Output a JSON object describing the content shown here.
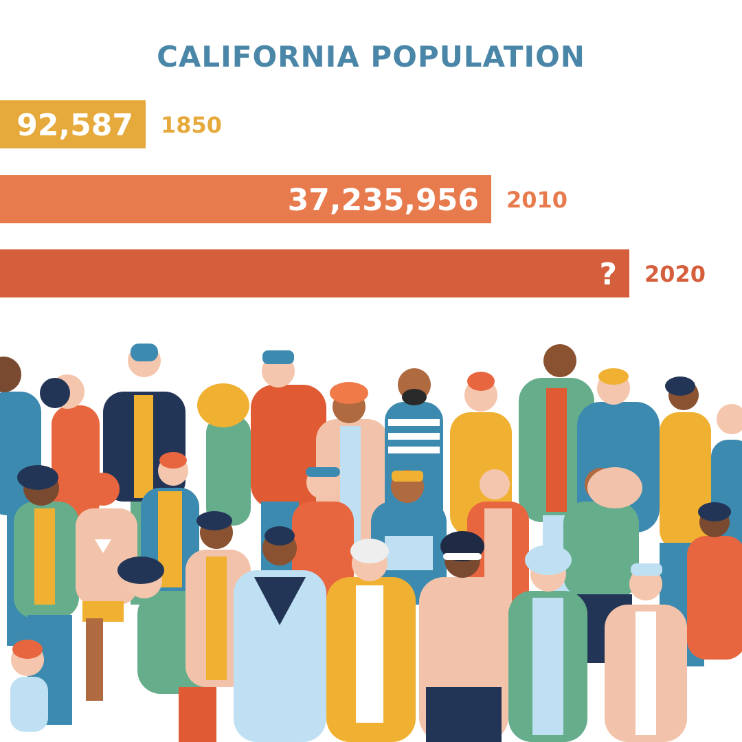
{
  "colors": {
    "title": "#4a86a8",
    "bars": [
      "#e6a93c",
      "#e77b4e",
      "#d55f3d"
    ]
  },
  "chart_data": {
    "type": "bar",
    "orientation": "horizontal",
    "title": "CALIFORNIA POPULATION",
    "categories": [
      "1850",
      "2010",
      "2020"
    ],
    "values": [
      92587,
      37235956,
      null
    ],
    "value_labels": [
      "92,587",
      "37,235,956",
      "?"
    ],
    "xlim": [
      0,
      50000000
    ]
  }
}
